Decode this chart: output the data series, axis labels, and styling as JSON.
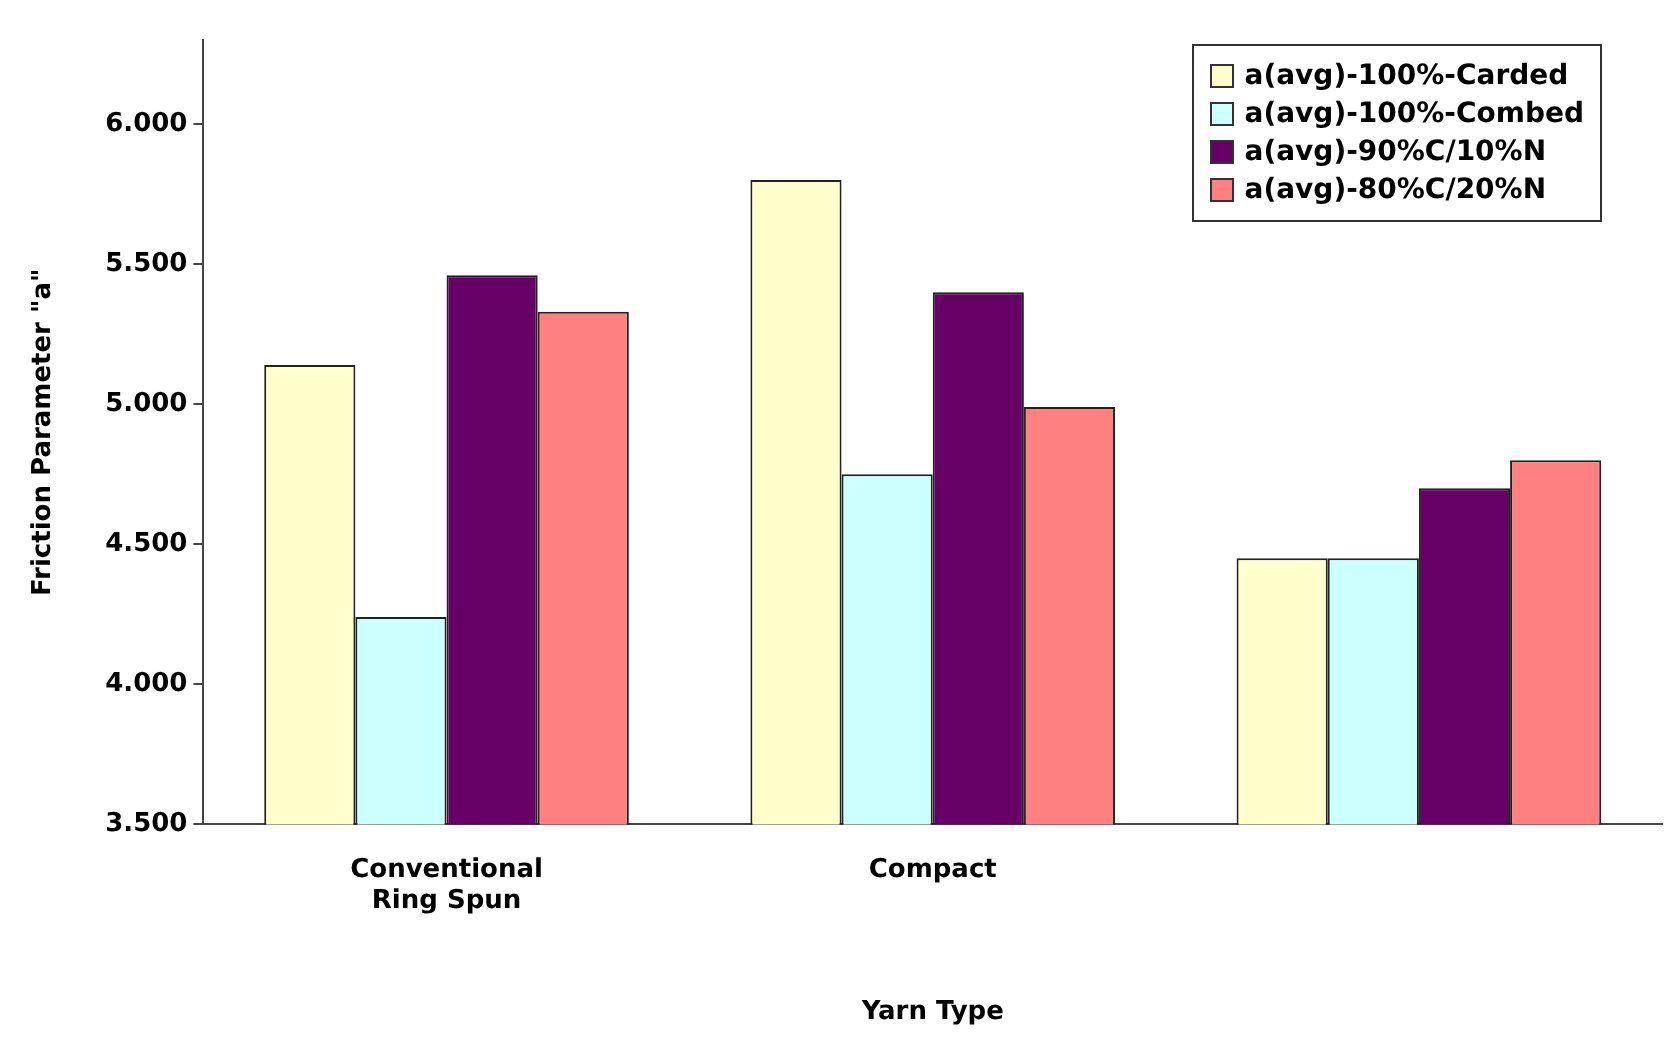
{
  "chart_data": {
    "type": "bar",
    "xlabel": "Yarn Type",
    "ylabel": "Friction Parameter \"a\"",
    "categories": [
      "Conventional Ring Spun",
      "Compact",
      null
    ],
    "series": [
      {
        "name": "a(avg)-100%-Carded",
        "color": "#ffffcc",
        "values": [
          5140,
          5800,
          4450
        ]
      },
      {
        "name": "a(avg)-100%-Combed",
        "color": "#ccffff",
        "values": [
          4240,
          4750,
          4450
        ]
      },
      {
        "name": "a(avg)-90%C/10%N",
        "color": "#660066",
        "values": [
          5460,
          5400,
          4700
        ]
      },
      {
        "name": "a(avg)-80%C/20%N",
        "color": "#ff8080",
        "values": [
          5330,
          4990,
          4800
        ]
      }
    ],
    "ylim": [
      3500,
      6300
    ],
    "yticks": [
      {
        "value": 3500,
        "label": "3.500"
      },
      {
        "value": 4000,
        "label": "4.000"
      },
      {
        "value": 4500,
        "label": "4.500"
      },
      {
        "value": 5000,
        "label": "5.000"
      },
      {
        "value": 5500,
        "label": "5.500"
      },
      {
        "value": 6000,
        "label": "6.000"
      }
    ],
    "grid": false,
    "legend": "top right"
  }
}
